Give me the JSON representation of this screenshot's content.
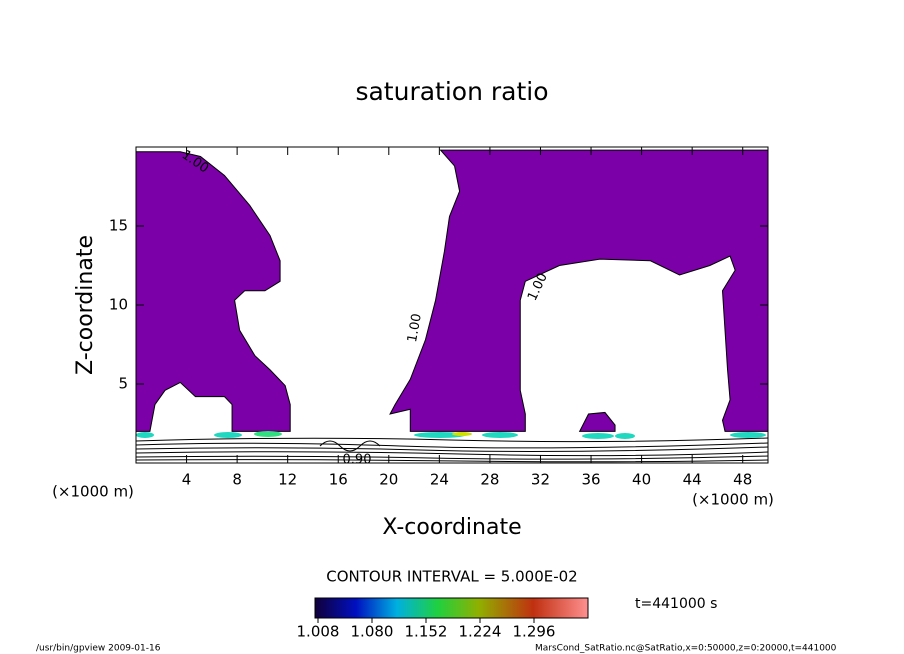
{
  "chart_data": {
    "type": "contour",
    "title": "saturation ratio",
    "xlabel": "X-coordinate",
    "ylabel": "Z-coordinate",
    "unit_label": "(×1000 m)",
    "xlim": [
      0,
      50
    ],
    "xticks": [
      4,
      8,
      12,
      16,
      20,
      24,
      28,
      32,
      36,
      40,
      44,
      48
    ],
    "ylim": [
      0,
      20
    ],
    "yticks": [
      5,
      10,
      15
    ],
    "fill_color": "#7b00a8",
    "regions": [
      {
        "x": [
          0,
          3.5,
          5.1,
          7.0,
          9.0,
          10.6,
          11.4,
          11.4,
          10.2,
          8.6,
          7.8,
          8.2,
          9.4,
          10.6,
          11.8,
          12.2,
          12.2,
          7.6,
          7.6,
          7.0,
          4.7,
          3.5,
          2.3,
          1.5,
          1.1,
          0
        ],
        "z": [
          19.7,
          19.7,
          19.4,
          18.2,
          16.3,
          14.4,
          12.8,
          11.5,
          10.9,
          10.9,
          10.3,
          8.4,
          6.8,
          5.9,
          4.9,
          3.7,
          2.0,
          2.0,
          3.7,
          4.2,
          4.2,
          5.1,
          4.6,
          3.7,
          2.0,
          2.0
        ]
      },
      {
        "x": [
          24.1,
          25.2,
          25.6,
          24.8,
          24.4,
          23.7,
          22.9,
          21.7,
          20.5,
          20.1,
          21.7,
          21.7,
          30.8,
          30.8,
          30.4,
          30.4,
          30.8,
          33.5,
          36.7,
          40.7,
          43.0,
          45.4,
          47.0,
          47.4,
          46.4,
          46.6,
          46.8,
          47.0,
          46.4,
          46.6,
          50,
          50
        ],
        "z": [
          19.8,
          18.8,
          17.2,
          15.6,
          13.4,
          10.3,
          7.8,
          5.3,
          3.7,
          3.1,
          3.4,
          2.0,
          2.0,
          3.1,
          4.6,
          10.3,
          11.5,
          12.5,
          12.9,
          12.8,
          11.9,
          12.5,
          13.1,
          12.2,
          10.9,
          8.4,
          5.9,
          4.0,
          2.7,
          2.0,
          2.0,
          19.8
        ]
      },
      {
        "x": [
          35.1,
          35.8,
          37.1,
          37.9,
          37.9
        ],
        "z": [
          2.0,
          3.1,
          3.2,
          2.4,
          2.0
        ]
      }
    ],
    "contour_labels": [
      "1.00",
      "1.00",
      "1.00",
      "0.90"
    ],
    "contour_interval": "CONTOUR INTERVAL = 5.000E-02",
    "colorbar": {
      "lim": [
        1.004,
        1.368
      ],
      "ticks": [
        1.008,
        {
          "value": 1.08,
          "label": "1.080"
        },
        1.152,
        1.224,
        1.296
      ]
    },
    "time_label": "t=441000 s",
    "footer_left": "/usr/bin/gpview  2009-01-16",
    "footer_right": "MarsCond_SatRatio.nc@SatRatio,x=0:50000,z=0:20000,t=441000"
  }
}
